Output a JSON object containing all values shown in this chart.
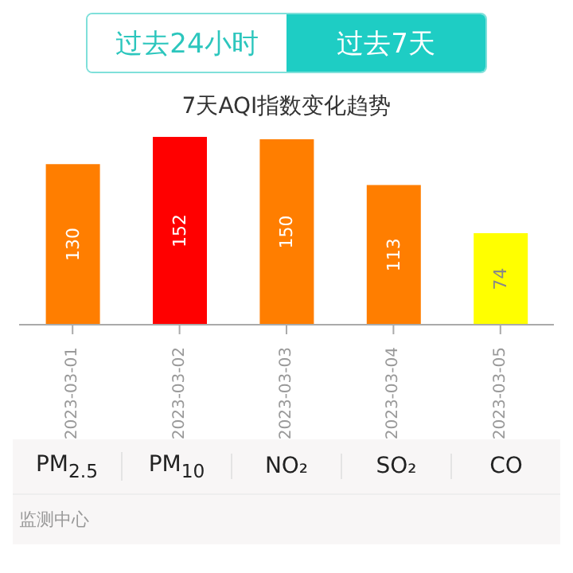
{
  "chart_data": {
    "type": "bar",
    "title": "7天AQI指数变化趋势",
    "categories": [
      "2023-03-01",
      "2023-03-02",
      "2023-03-03",
      "2023-03-04",
      "2023-03-05"
    ],
    "values": [
      130,
      152,
      150,
      113,
      74
    ],
    "colors": [
      "#ff7e00",
      "#ff0000",
      "#ff7e00",
      "#ff7e00",
      "#ffff00"
    ],
    "data_labels": true,
    "annotations": [
      "过去24小时",
      "过去7天",
      "PM$_{2.5}$",
      "PM$_{10}$",
      "NO₂",
      "SO₂",
      "CO",
      "监测中心"
    ]
  }
}
